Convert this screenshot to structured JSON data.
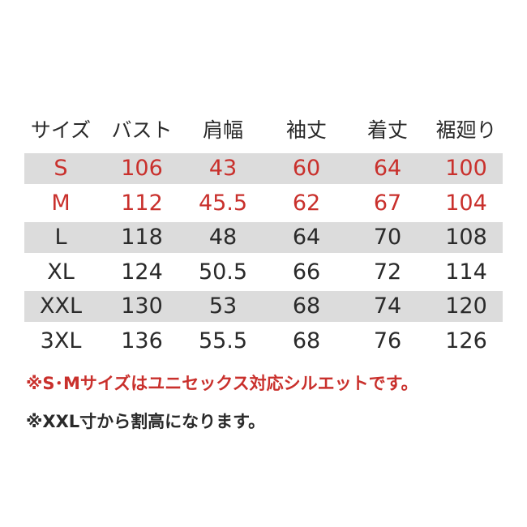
{
  "table": {
    "header": [
      "サイズ",
      "バスト",
      "肩幅",
      "袖丈",
      "着丈",
      "裾廻り"
    ],
    "rows": [
      [
        "S",
        "106",
        "43",
        "60",
        "64",
        "100"
      ],
      [
        "M",
        "112",
        "45.5",
        "62",
        "67",
        "104"
      ],
      [
        "L",
        "118",
        "48",
        "64",
        "70",
        "108"
      ],
      [
        "XL",
        "124",
        "50.5",
        "66",
        "72",
        "114"
      ],
      [
        "XXL",
        "130",
        "53",
        "68",
        "74",
        "120"
      ],
      [
        "3XL",
        "136",
        "55.5",
        "68",
        "76",
        "126"
      ]
    ]
  },
  "notes": [
    "※S･Mサイズはユニセックス対応シルエットです。",
    "※XXL寸から割高になります。"
  ]
}
